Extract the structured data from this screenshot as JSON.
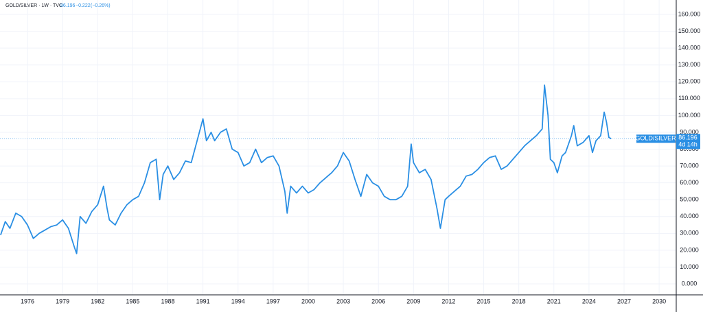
{
  "chart_data": {
    "type": "line",
    "title": "GOLD/SILVER · 1W · TVC",
    "last_value_label": "86.196",
    "change_label": "−0.222",
    "change_percent_label": "(−0.26%)",
    "price_tag": {
      "name": "GOLD/SILVER",
      "value": 86.196,
      "countdown": "4d 14h"
    },
    "x": [
      1973.7,
      1974.1,
      1974.5,
      1975,
      1975.5,
      1976,
      1976.5,
      1977,
      1977.5,
      1978,
      1978.5,
      1979,
      1979.5,
      1980,
      1980.2,
      1980.5,
      1981,
      1981.5,
      1982,
      1982.5,
      1982.8,
      1983,
      1983.5,
      1984,
      1984.5,
      1985,
      1985.5,
      1986,
      1986.5,
      1987,
      1987.3,
      1987.6,
      1988,
      1988.5,
      1989,
      1989.5,
      1990,
      1990.5,
      1991,
      1991.3,
      1991.7,
      1992,
      1992.5,
      1993,
      1993.5,
      1994,
      1994.5,
      1995,
      1995.5,
      1996,
      1996.5,
      1997,
      1997.5,
      1998,
      1998.2,
      1998.5,
      1999,
      1999.5,
      2000,
      2000.5,
      2001,
      2001.5,
      2002,
      2002.5,
      2003,
      2003.5,
      2004,
      2004.5,
      2005,
      2005.5,
      2006,
      2006.5,
      2007,
      2007.5,
      2008,
      2008.5,
      2008.8,
      2009,
      2009.5,
      2010,
      2010.5,
      2011,
      2011.3,
      2011.7,
      2012,
      2012.5,
      2013,
      2013.5,
      2014,
      2014.5,
      2015,
      2015.5,
      2016,
      2016.5,
      2017,
      2017.5,
      2018,
      2018.5,
      2019,
      2019.5,
      2020,
      2020.2,
      2020.5,
      2020.7,
      2021,
      2021.3,
      2021.7,
      2022,
      2022.5,
      2022.7,
      2023,
      2023.5,
      2024,
      2024.3,
      2024.6,
      2025,
      2025.3,
      2025.5,
      2025.7,
      2025.9
    ],
    "series": [
      {
        "name": "GOLD/SILVER",
        "color": "#2a8fe4",
        "values": [
          29,
          37,
          33,
          42,
          40,
          35,
          27,
          30,
          32,
          34,
          35,
          38,
          33,
          22,
          18,
          40,
          36,
          43,
          47,
          58,
          45,
          38,
          35,
          42,
          47,
          50,
          52,
          60,
          72,
          74,
          50,
          65,
          70,
          62,
          66,
          73,
          72,
          85,
          98,
          85,
          90,
          85,
          90,
          92,
          80,
          78,
          70,
          72,
          80,
          72,
          75,
          76,
          70,
          55,
          42,
          58,
          54,
          58,
          54,
          56,
          60,
          63,
          66,
          70,
          78,
          73,
          62,
          52,
          65,
          60,
          58,
          52,
          50,
          50,
          52,
          58,
          83,
          72,
          66,
          68,
          62,
          45,
          33,
          50,
          52,
          55,
          58,
          64,
          65,
          68,
          72,
          75,
          76,
          68,
          70,
          74,
          78,
          82,
          85,
          88,
          92,
          118,
          100,
          74,
          72,
          66,
          76,
          78,
          88,
          94,
          82,
          84,
          88,
          78,
          85,
          88,
          102,
          96,
          87,
          86.196
        ]
      }
    ],
    "xlim": [
      1973.65,
      2031.46
    ],
    "xticks": [
      1976,
      1979,
      1982,
      1985,
      1988,
      1991,
      1994,
      1997,
      2000,
      2003,
      2006,
      2009,
      2012,
      2015,
      2018,
      2021,
      2024,
      2027,
      2030
    ],
    "ylim": [
      -6.5,
      168.55
    ],
    "yticks": [
      {
        "value": 0,
        "label": "0.000"
      },
      {
        "value": 10,
        "label": "10.000"
      },
      {
        "value": 20,
        "label": "20.000"
      },
      {
        "value": 30,
        "label": "30.000"
      },
      {
        "value": 40,
        "label": "40.000"
      },
      {
        "value": 50,
        "label": "50.000"
      },
      {
        "value": 60,
        "label": "60.000"
      },
      {
        "value": 70,
        "label": "70.000"
      },
      {
        "value": 80,
        "label": "80.000"
      },
      {
        "value": 90,
        "label": "90.000"
      },
      {
        "value": 100,
        "label": "100.000"
      },
      {
        "value": 110,
        "label": "110.000"
      },
      {
        "value": 120,
        "label": "120.000"
      },
      {
        "value": 130,
        "label": "130.000"
      },
      {
        "value": 140,
        "label": "140.000"
      },
      {
        "value": 150,
        "label": "150.000"
      },
      {
        "value": 160,
        "label": "160.000"
      }
    ],
    "grid": true
  }
}
